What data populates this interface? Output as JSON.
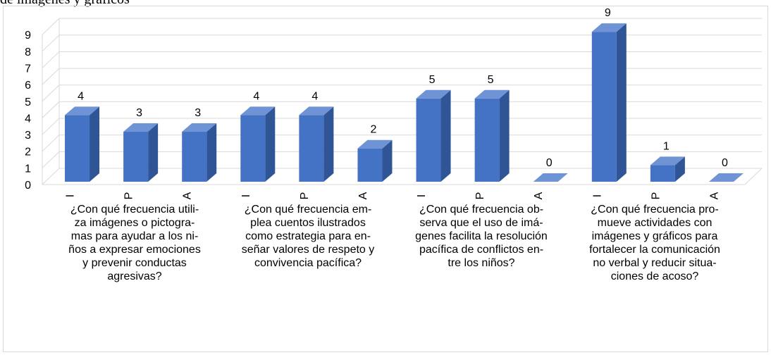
{
  "page": {
    "title_fragment": "de imágenes y gráficos"
  },
  "chart_data": {
    "type": "bar",
    "style": "3d-column",
    "ylim": [
      0,
      9
    ],
    "yticks": [
      0,
      1,
      2,
      3,
      4,
      5,
      6,
      7,
      8,
      9
    ],
    "grid": true,
    "bar_color": "#4472c4",
    "groups": [
      {
        "label": "¿Con qué frecuencia utiliza imágenes o pictogramas para ayudar a los niños a expresar emociones y prevenir conductas agresivas?",
        "label_lines": [
          "¿Con qué frecuencia utili-",
          "za imágenes o pictogra-",
          "mas para ayudar a los ni-",
          "ños a expresar emociones",
          "y prevenir conductas",
          "agresivas?"
        ],
        "categories": [
          "I",
          "P",
          "A"
        ],
        "values": [
          4,
          3,
          3
        ]
      },
      {
        "label": "¿Con qué frecuencia emplea cuentos ilustrados como estrategia para enseñar valores de respeto y convivencia pacífica?",
        "label_lines": [
          "¿Con qué frecuencia em-",
          "plea cuentos ilustrados",
          "como estrategia para en-",
          "señar valores de respeto y",
          "convivencia pacífica?"
        ],
        "categories": [
          "I",
          "P",
          "A"
        ],
        "values": [
          4,
          4,
          2
        ]
      },
      {
        "label": "¿Con qué frecuencia observa que el uso de imágenes facilita la resolución pacífica de conflictos entre los niños?",
        "label_lines": [
          "¿Con qué frecuencia ob-",
          "serva que el uso de imá-",
          "genes facilita la resolución",
          "pacífica de conflictos en-",
          "tre los niños?"
        ],
        "categories": [
          "I",
          "P",
          "A"
        ],
        "values": [
          5,
          5,
          0
        ]
      },
      {
        "label": "¿Con qué frecuencia promueve actividades con imágenes y gráficos para fortalecer la comunicación no verbal y reducir situaciones de acoso?",
        "label_lines": [
          "¿Con qué frecuencia pro-",
          "mueve actividades con",
          "imágenes y gráficos para",
          "fortalecer la comunicación",
          "no verbal y reducir situa-",
          "ciones de acoso?"
        ],
        "categories": [
          "I",
          "P",
          "A"
        ],
        "values": [
          9,
          1,
          0
        ]
      }
    ]
  }
}
